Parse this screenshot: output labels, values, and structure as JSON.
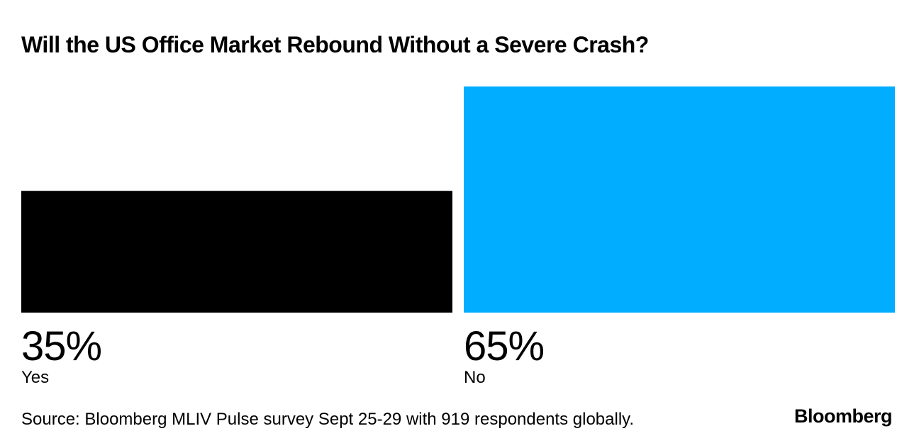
{
  "chart_data": {
    "type": "bar",
    "title": "Will the US Office Market Rebound Without a Severe Crash?",
    "categories": [
      "Yes",
      "No"
    ],
    "values": [
      35,
      65
    ],
    "value_labels": [
      "35%",
      "65%"
    ],
    "colors": [
      "#000000",
      "#00adff"
    ],
    "source": "Source: Bloomberg MLIV Pulse survey Sept 25-29 with 919 respondents globally.",
    "brand": "Bloomberg"
  }
}
